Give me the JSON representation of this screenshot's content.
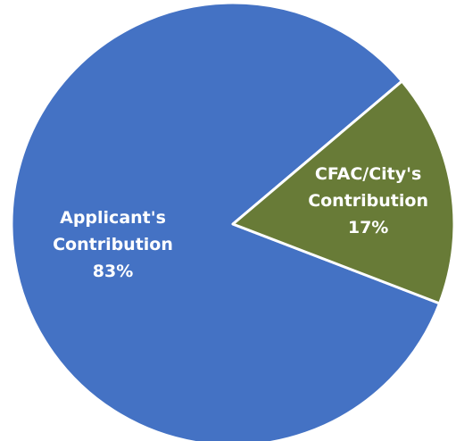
{
  "chart_data": {
    "type": "pie",
    "categories": [
      "Applicant's Contribution",
      "CFAC/City's Contribution"
    ],
    "values": [
      83,
      17
    ],
    "value_labels": [
      "83%",
      "17%"
    ],
    "colors": [
      "#4472c4",
      "#687b37"
    ]
  }
}
